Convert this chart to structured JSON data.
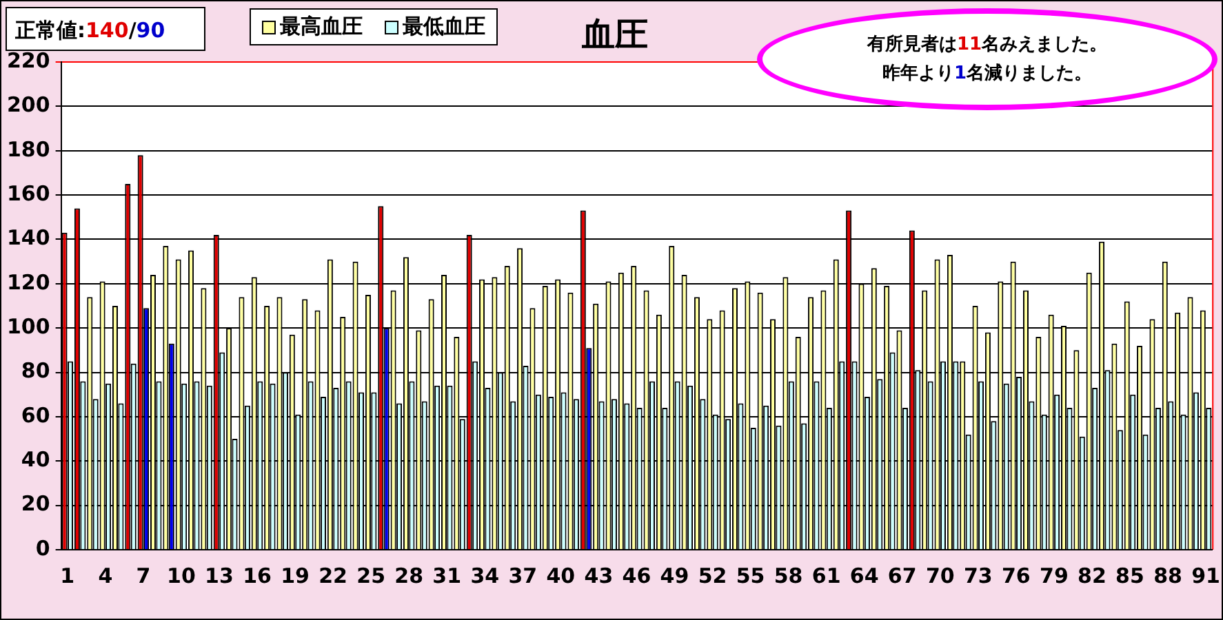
{
  "chart_data": {
    "type": "bar",
    "title": "血圧",
    "categories": [
      "1",
      null,
      null,
      "4",
      null,
      null,
      "7",
      null,
      null,
      "10",
      null,
      null,
      "13",
      null,
      null,
      "16",
      null,
      null,
      "19",
      null,
      null,
      "22",
      null,
      null,
      "25",
      null,
      null,
      "28",
      null,
      null,
      "31",
      null,
      null,
      "34",
      null,
      null,
      "37",
      null,
      null,
      "40",
      null,
      null,
      "43",
      null,
      null,
      "46",
      null,
      null,
      "49",
      null,
      null,
      "52",
      null,
      null,
      "55",
      null,
      null,
      "58",
      null,
      null,
      "61",
      null,
      null,
      "64",
      null,
      null,
      "67",
      null,
      null,
      "70",
      null,
      null,
      "73",
      null,
      null,
      "76",
      null,
      null,
      "79",
      null,
      null,
      "82",
      null,
      null,
      "85",
      null,
      null,
      "88",
      null,
      null,
      "91"
    ],
    "series": [
      {
        "name": "最高血圧",
        "color": "#ffffa0",
        "values": [
          143,
          154,
          114,
          121,
          110,
          165,
          178,
          124,
          137,
          131,
          135,
          118,
          142,
          100,
          114,
          123,
          110,
          114,
          97,
          113,
          108,
          131,
          105,
          130,
          115,
          155,
          117,
          132,
          99,
          113,
          124,
          96,
          142,
          122,
          123,
          128,
          136,
          109,
          119,
          122,
          116,
          153,
          111,
          121,
          125,
          128,
          117,
          106,
          137,
          124,
          114,
          104,
          108,
          118,
          121,
          116,
          104,
          123,
          96,
          114,
          117,
          131,
          153,
          120,
          127,
          119,
          99,
          144,
          117,
          131,
          133,
          85,
          110,
          98,
          121,
          130,
          117,
          96,
          106,
          101,
          90,
          125,
          139,
          93,
          112,
          92,
          104,
          130,
          107,
          114,
          108
        ],
        "colors": [
          "#e00000",
          "#e00000",
          "#ffffa0",
          "#ffffa0",
          "#ffffa0",
          "#e00000",
          "#e00000",
          "#ffffa0",
          "#ffffa0",
          "#ffffa0",
          "#ffffa0",
          "#ffffa0",
          "#e00000",
          "#ffffa0",
          "#ffffa0",
          "#ffffa0",
          "#ffffa0",
          "#ffffa0",
          "#ffffa0",
          "#ffffa0",
          "#ffffa0",
          "#ffffa0",
          "#ffffa0",
          "#ffffa0",
          "#ffffa0",
          "#e00000",
          "#ffffa0",
          "#ffffa0",
          "#ffffa0",
          "#ffffa0",
          "#ffffa0",
          "#ffffa0",
          "#e00000",
          "#ffffa0",
          "#ffffa0",
          "#ffffa0",
          "#ffffa0",
          "#ffffa0",
          "#ffffa0",
          "#ffffa0",
          "#ffffa0",
          "#e00000",
          "#ffffa0",
          "#ffffa0",
          "#ffffa0",
          "#ffffa0",
          "#ffffa0",
          "#ffffa0",
          "#ffffa0",
          "#ffffa0",
          "#ffffa0",
          "#ffffa0",
          "#ffffa0",
          "#ffffa0",
          "#ffffa0",
          "#ffffa0",
          "#ffffa0",
          "#ffffa0",
          "#ffffa0",
          "#ffffa0",
          "#ffffa0",
          "#ffffa0",
          "#e00000",
          "#ffffa0",
          "#ffffa0",
          "#ffffa0",
          "#ffffa0",
          "#e00000",
          "#ffffa0",
          "#ffffa0",
          "#ffffa0",
          "#ffffa0",
          "#ffffa0",
          "#ffffa0",
          "#ffffa0",
          "#ffffa0",
          "#ffffa0",
          "#ffffa0",
          "#ffffa0",
          "#ffffa0",
          "#ffffa0",
          "#ffffa0",
          "#ffffa0",
          "#ffffa0",
          "#ffffa0",
          "#ffffa0",
          "#ffffa0",
          "#ffffa0",
          "#ffffa0",
          "#ffffa0",
          "#ffffa0"
        ]
      },
      {
        "name": "最低血圧",
        "color": "#ccffff",
        "values": [
          85,
          76,
          68,
          75,
          66,
          84,
          109,
          76,
          93,
          75,
          76,
          74,
          89,
          50,
          65,
          76,
          75,
          80,
          61,
          76,
          69,
          73,
          76,
          71,
          71,
          100,
          66,
          76,
          67,
          74,
          74,
          59,
          85,
          73,
          80,
          67,
          83,
          70,
          69,
          71,
          68,
          91,
          67,
          68,
          66,
          64,
          76,
          64,
          76,
          74,
          68,
          61,
          59,
          66,
          55,
          65,
          56,
          76,
          57,
          76,
          64,
          85,
          85,
          69,
          77,
          89,
          64,
          81,
          76,
          85,
          85,
          52,
          76,
          58,
          75,
          78,
          67,
          61,
          70,
          64,
          51,
          73,
          81,
          54,
          70,
          52,
          64,
          67,
          61,
          71,
          64
        ],
        "colors": [
          "#ccffff",
          "#ccffff",
          "#ccffff",
          "#ccffff",
          "#ccffff",
          "#ccffff",
          "#0000ee",
          "#ccffff",
          "#0000ee",
          "#ccffff",
          "#ccffff",
          "#ccffff",
          "#ccffff",
          "#ccffff",
          "#ccffff",
          "#ccffff",
          "#ccffff",
          "#ccffff",
          "#ccffff",
          "#ccffff",
          "#ccffff",
          "#ccffff",
          "#ccffff",
          "#ccffff",
          "#ccffff",
          "#0000ee",
          "#ccffff",
          "#ccffff",
          "#ccffff",
          "#ccffff",
          "#ccffff",
          "#ccffff",
          "#ccffff",
          "#ccffff",
          "#ccffff",
          "#ccffff",
          "#ccffff",
          "#ccffff",
          "#ccffff",
          "#ccffff",
          "#ccffff",
          "#0000ee",
          "#ccffff",
          "#ccffff",
          "#ccffff",
          "#ccffff",
          "#ccffff",
          "#ccffff",
          "#ccffff",
          "#ccffff",
          "#ccffff",
          "#ccffff",
          "#ccffff",
          "#ccffff",
          "#ccffff",
          "#ccffff",
          "#ccffff",
          "#ccffff",
          "#ccffff",
          "#ccffff",
          "#ccffff",
          "#ccffff",
          "#ccffff",
          "#ccffff",
          "#ccffff",
          "#ccffff",
          "#ccffff",
          "#ccffff",
          "#ccffff",
          "#ccffff",
          "#ccffff",
          "#ccffff",
          "#ccffff",
          "#ccffff",
          "#ccffff",
          "#ccffff",
          "#ccffff",
          "#ccffff",
          "#ccffff",
          "#ccffff",
          "#ccffff",
          "#ccffff",
          "#ccffff",
          "#ccffff",
          "#ccffff",
          "#ccffff",
          "#ccffff",
          "#ccffff",
          "#ccffff",
          "#ccffff",
          "#ccffff"
        ]
      }
    ],
    "ylim": [
      0,
      220
    ],
    "yticks": [
      0,
      20,
      40,
      60,
      80,
      100,
      120,
      140,
      160,
      180,
      200,
      220
    ],
    "grid": "y",
    "legend": "top",
    "annotations": [
      "正常値:140/90",
      "有所見者は11名みえました。",
      "昨年より1名減りました。"
    ]
  }
}
